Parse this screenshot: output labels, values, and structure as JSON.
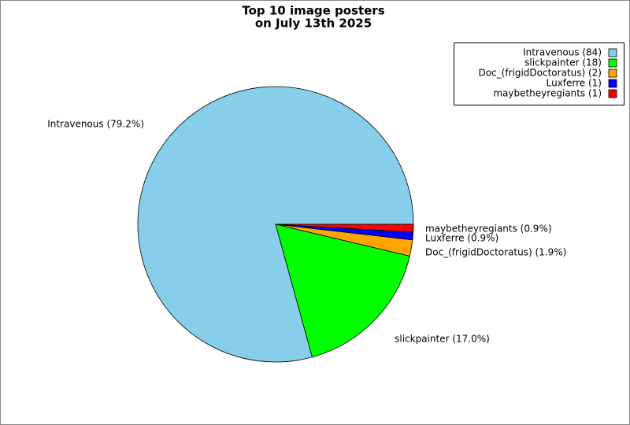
{
  "chart_data": {
    "type": "pie",
    "title": "Top 10 image posters",
    "subtitle": "on July 13th 2025",
    "values": [
      79.2,
      17.0,
      1.9,
      0.9,
      0.9
    ],
    "value_labels": [
      "Intravenous (79.2%)",
      "slickpainter (17.0%)",
      "Doc_(frigidDoctoratus) (1.9%)",
      "Luxferre (0.9%)",
      "maybetheyregiants (0.9%)"
    ],
    "legend_labels": [
      "Intravenous (84)",
      "slickpainter (18)",
      "Doc_(frigidDoctoratus) (2)",
      "Luxferre (1)",
      "maybetheyregiants (1)"
    ],
    "colors": [
      "#87ceeb",
      "#00ff00",
      "#ffa500",
      "#0000ff",
      "#ff0000"
    ],
    "legend": "upper right"
  }
}
